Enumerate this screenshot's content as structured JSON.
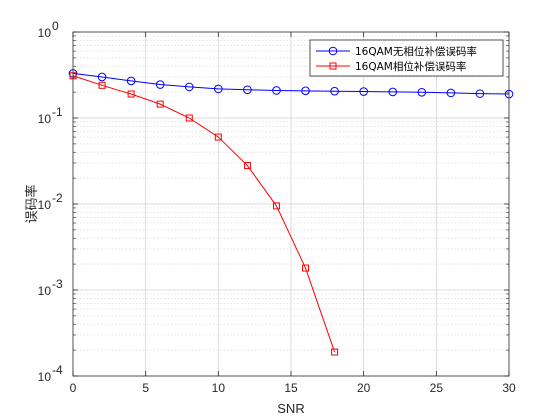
{
  "chart_data": {
    "type": "line",
    "xlabel": "SNR",
    "ylabel": "误码率",
    "y_scale": "log",
    "xlim": [
      0,
      30
    ],
    "ylim": [
      0.0001,
      1
    ],
    "x_ticks": [
      0,
      5,
      10,
      15,
      20,
      25,
      30
    ],
    "x_tick_labels": [
      "0",
      "5",
      "10",
      "15",
      "20",
      "25",
      "30"
    ],
    "y_ticks": [
      0.0001,
      0.001,
      0.01,
      0.1,
      1
    ],
    "y_tick_labels": [
      {
        "base": "10",
        "exp": "-4"
      },
      {
        "base": "10",
        "exp": "-3"
      },
      {
        "base": "10",
        "exp": "-2"
      },
      {
        "base": "10",
        "exp": "-1"
      },
      {
        "base": "10",
        "exp": "0"
      }
    ],
    "grid": true,
    "minor_grid": true,
    "legend_position": "top-right",
    "series": [
      {
        "name": "16QAM无相位补偿误码率",
        "color": "#0000ff",
        "marker": "circle",
        "x": [
          0,
          2,
          4,
          6,
          8,
          10,
          12,
          14,
          16,
          18,
          20,
          22,
          24,
          26,
          28,
          30
        ],
        "y": [
          0.33,
          0.3,
          0.27,
          0.245,
          0.23,
          0.218,
          0.213,
          0.209,
          0.207,
          0.205,
          0.203,
          0.201,
          0.199,
          0.196,
          0.192,
          0.19
        ]
      },
      {
        "name": "16QAM相位补偿误码率",
        "color": "#ff0000",
        "marker": "square",
        "x": [
          0,
          2,
          4,
          6,
          8,
          10,
          12,
          14,
          16,
          18
        ],
        "y": [
          0.31,
          0.24,
          0.19,
          0.145,
          0.1,
          0.06,
          0.028,
          0.0095,
          0.0018,
          0.00019
        ]
      }
    ]
  }
}
